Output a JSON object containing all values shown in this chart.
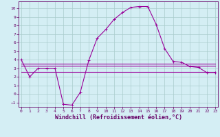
{
  "title": "",
  "xlabel": "Windchill (Refroidissement éolien,°C)",
  "ylabel": "",
  "background_color": "#d4eef4",
  "line_color": "#990099",
  "grid_color": "#aacccc",
  "x_data": [
    0,
    1,
    2,
    3,
    4,
    5,
    6,
    7,
    8,
    9,
    10,
    11,
    12,
    13,
    14,
    15,
    16,
    17,
    18,
    19,
    20,
    21,
    22,
    23
  ],
  "windchill": [
    4,
    2,
    3,
    3,
    3,
    -1.2,
    -1.3,
    0.2,
    3.9,
    6.5,
    7.5,
    8.7,
    9.5,
    10.1,
    10.2,
    10.2,
    8.1,
    5.3,
    3.8,
    3.7,
    3.2,
    3.1,
    2.5,
    2.5
  ],
  "temp_line1": [
    3.3,
    3.3,
    3.3,
    3.3,
    3.3,
    3.3,
    3.3,
    3.3,
    3.3,
    3.3,
    3.3,
    3.3,
    3.3,
    3.3,
    3.3,
    3.3,
    3.3,
    3.3,
    3.3,
    3.3,
    3.3,
    3.3,
    3.3,
    3.3
  ],
  "temp_line2": [
    3.5,
    3.5,
    3.5,
    3.5,
    3.5,
    3.5,
    3.5,
    3.5,
    3.5,
    3.5,
    3.5,
    3.5,
    3.5,
    3.5,
    3.5,
    3.5,
    3.5,
    3.5,
    3.5,
    3.5,
    3.5,
    3.5,
    3.5,
    3.5
  ],
  "temp_line3": [
    2.6,
    2.6,
    2.6,
    2.6,
    2.6,
    2.6,
    2.6,
    2.6,
    2.6,
    2.6,
    2.6,
    2.6,
    2.6,
    2.6,
    2.6,
    2.6,
    2.6,
    2.6,
    2.6,
    2.6,
    2.6,
    2.6,
    2.6,
    2.6
  ],
  "ylim": [
    -1.5,
    10.8
  ],
  "xlim": [
    -0.3,
    23.3
  ],
  "yticks": [
    -1,
    0,
    1,
    2,
    3,
    4,
    5,
    6,
    7,
    8,
    9,
    10
  ],
  "xticks": [
    0,
    1,
    2,
    3,
    4,
    5,
    6,
    7,
    8,
    9,
    10,
    11,
    12,
    13,
    14,
    15,
    16,
    17,
    18,
    19,
    20,
    21,
    22,
    23
  ],
  "font_color": "#660066",
  "tick_fontsize": 4.5,
  "xlabel_fontsize": 6.0
}
